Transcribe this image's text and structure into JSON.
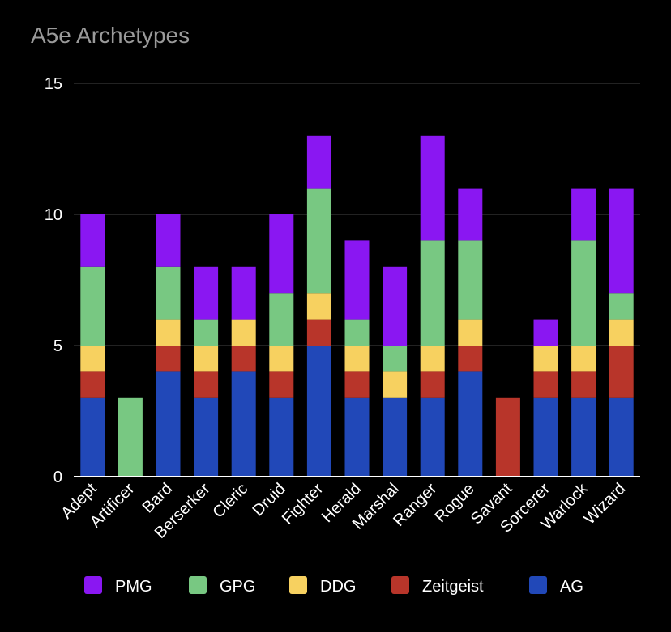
{
  "chart_data": {
    "type": "bar",
    "stacked": true,
    "title": "A5e Archetypes",
    "xlabel": "",
    "ylabel": "",
    "ylim": [
      0,
      15
    ],
    "yticks": [
      0,
      5,
      10,
      15
    ],
    "grid": true,
    "legend_position": "bottom",
    "categories": [
      "Adept",
      "Artificer",
      "Bard",
      "Berserker",
      "Cleric",
      "Druid",
      "Fighter",
      "Herald",
      "Marshal",
      "Ranger",
      "Rogue",
      "Savant",
      "Sorcerer",
      "Warlock",
      "Wizard"
    ],
    "series": [
      {
        "name": "AG",
        "color": "#2148b8",
        "values": [
          3,
          0,
          4,
          3,
          4,
          3,
          5,
          3,
          3,
          3,
          4,
          0,
          3,
          3,
          3
        ]
      },
      {
        "name": "Zeitgeist",
        "color": "#b8352a",
        "values": [
          1,
          0,
          1,
          1,
          1,
          1,
          1,
          1,
          0,
          1,
          1,
          3,
          1,
          1,
          2
        ]
      },
      {
        "name": "DDG",
        "color": "#f7d160",
        "values": [
          1,
          0,
          1,
          1,
          1,
          1,
          1,
          1,
          1,
          1,
          1,
          0,
          1,
          1,
          1
        ]
      },
      {
        "name": "GPG",
        "color": "#78c882",
        "values": [
          3,
          3,
          2,
          1,
          0,
          2,
          4,
          1,
          1,
          4,
          3,
          0,
          0,
          4,
          1
        ]
      },
      {
        "name": "PMG",
        "color": "#8a17f2",
        "values": [
          2,
          0,
          2,
          2,
          2,
          3,
          2,
          3,
          3,
          4,
          2,
          0,
          1,
          2,
          4
        ]
      }
    ],
    "legend_order": [
      "PMG",
      "GPG",
      "DDG",
      "Zeitgeist",
      "AG"
    ],
    "text_color": "#ffffff",
    "grid_color": "#444444",
    "axis_color": "#ffffff"
  }
}
